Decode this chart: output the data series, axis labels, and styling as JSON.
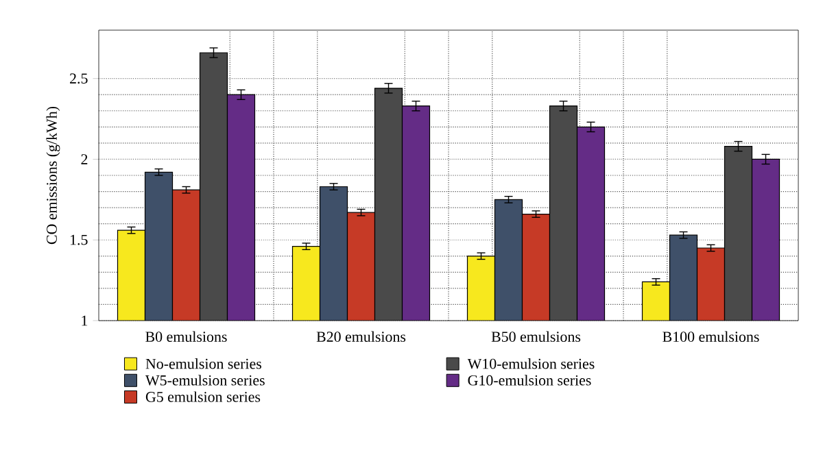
{
  "chart_data": {
    "type": "bar",
    "ylabel": "CO emissions (g/kWh)",
    "categories": [
      "B0 emulsions",
      "B20 emulsions",
      "B50 emulsions",
      "B100 emulsions"
    ],
    "series": [
      {
        "name": "No-emulsion series",
        "color": "#f7e81e",
        "values": [
          1.56,
          1.46,
          1.4,
          1.24
        ],
        "errors": [
          0.02,
          0.02,
          0.02,
          0.02
        ]
      },
      {
        "name": "W5-emulsion series",
        "color": "#3f5069",
        "values": [
          1.92,
          1.83,
          1.75,
          1.53
        ],
        "errors": [
          0.02,
          0.02,
          0.02,
          0.02
        ]
      },
      {
        "name": "G5 emulsion series",
        "color": "#c63a26",
        "values": [
          1.81,
          1.67,
          1.66,
          1.45
        ],
        "errors": [
          0.02,
          0.02,
          0.02,
          0.02
        ]
      },
      {
        "name": "W10-emulsion series",
        "color": "#4a4a4a",
        "values": [
          2.66,
          2.44,
          2.33,
          2.08
        ],
        "errors": [
          0.03,
          0.03,
          0.03,
          0.03
        ]
      },
      {
        "name": "G10-emulsion series",
        "color": "#642c86",
        "values": [
          2.4,
          2.33,
          2.2,
          2.0
        ],
        "errors": [
          0.03,
          0.03,
          0.03,
          0.03
        ]
      }
    ],
    "ylim": [
      1,
      2.8
    ],
    "yticks": [
      1,
      1.5,
      2,
      2.5
    ],
    "grid": true,
    "legend": "bottom"
  }
}
